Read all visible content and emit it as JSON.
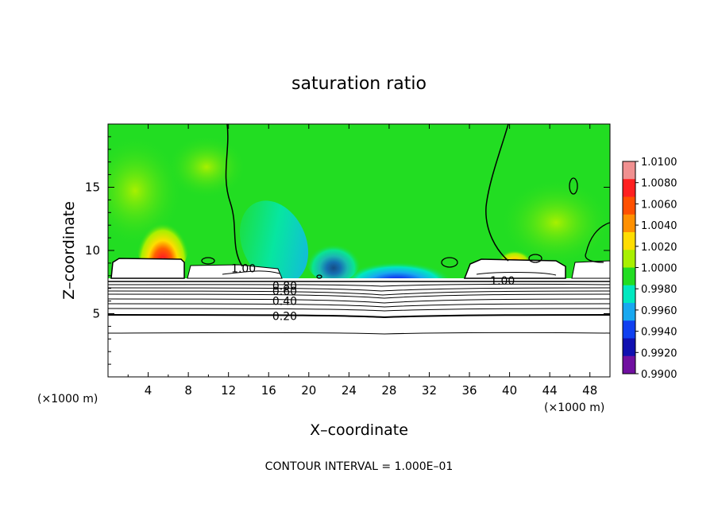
{
  "chart_data": {
    "type": "heatmap",
    "title": "saturation ratio",
    "xlabel": "X–coordinate",
    "ylabel": "Z–coordinate",
    "x_unit_left": "(×1000 m)",
    "x_unit_right": "(×1000 m)",
    "xlim": [
      0,
      50
    ],
    "ylim": [
      0,
      20
    ],
    "x_ticks": [
      4,
      8,
      12,
      16,
      20,
      24,
      28,
      32,
      36,
      40,
      44,
      48
    ],
    "y_ticks": [
      5,
      10,
      15
    ],
    "colorbar": {
      "levels": [
        "1.0100",
        "1.0080",
        "1.0060",
        "1.0040",
        "1.0020",
        "1.0000",
        "0.9980",
        "0.9960",
        "0.9940",
        "0.9920",
        "0.9900"
      ],
      "colors": [
        "#f09090",
        "#ff2020",
        "#ff5000",
        "#ff9000",
        "#ffdd00",
        "#a8f000",
        "#22dd22",
        "#00e8c0",
        "#18a8f0",
        "#1040f0",
        "#1010b0",
        "#7010a0"
      ]
    },
    "contour_labels": [
      {
        "text": "1.00",
        "x": 13.5,
        "z": 8.6
      },
      {
        "text": "1.00",
        "x": 39.3,
        "z": 7.6
      },
      {
        "text": "0.80",
        "x": 17.6,
        "z": 7.2
      },
      {
        "text": "0.60",
        "x": 17.6,
        "z": 6.8
      },
      {
        "text": "0.40",
        "x": 17.6,
        "z": 6.0
      },
      {
        "text": "0.20",
        "x": 17.6,
        "z": 4.8
      }
    ],
    "contour_interval": "CONTOUR INTERVAL = 1.000E–01"
  }
}
